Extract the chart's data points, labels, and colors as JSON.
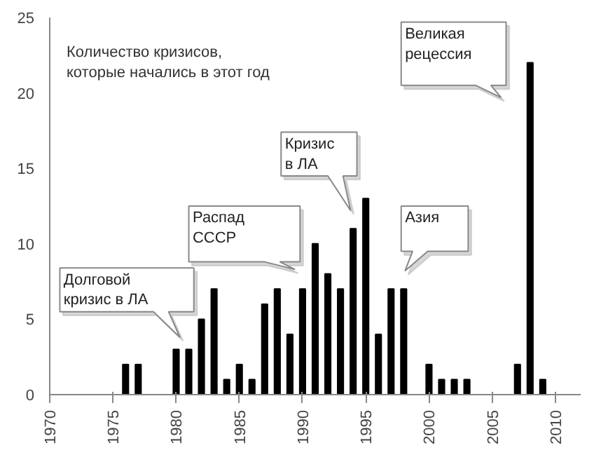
{
  "chart_data": {
    "type": "bar",
    "title": "Количество кризисов,\nкоторые начались в этот год",
    "x": [
      1976,
      1977,
      1980,
      1981,
      1982,
      1983,
      1984,
      1985,
      1986,
      1987,
      1988,
      1989,
      1990,
      1991,
      1992,
      1993,
      1994,
      1995,
      1996,
      1997,
      1998,
      2000,
      2001,
      2002,
      2003,
      2007,
      2008,
      2009
    ],
    "values": [
      2,
      2,
      3,
      3,
      5,
      7,
      1,
      2,
      1,
      6,
      7,
      4,
      7,
      10,
      8,
      7,
      11,
      13,
      4,
      7,
      7,
      2,
      1,
      1,
      1,
      2,
      22,
      1
    ],
    "color": "#000000",
    "xlim": [
      1970,
      2012
    ],
    "xticks": [
      1970,
      1975,
      1980,
      1985,
      1990,
      1995,
      2000,
      2005,
      2010
    ],
    "ylim": [
      0,
      25
    ],
    "yticks": [
      0,
      5,
      10,
      15,
      20,
      25
    ],
    "grid": false,
    "annotations": [
      "Долговой\nкризис в ЛА",
      "Распад\nСССР",
      "Кризис\nв ЛА",
      "Азия",
      "Великая\nрецессия"
    ]
  }
}
